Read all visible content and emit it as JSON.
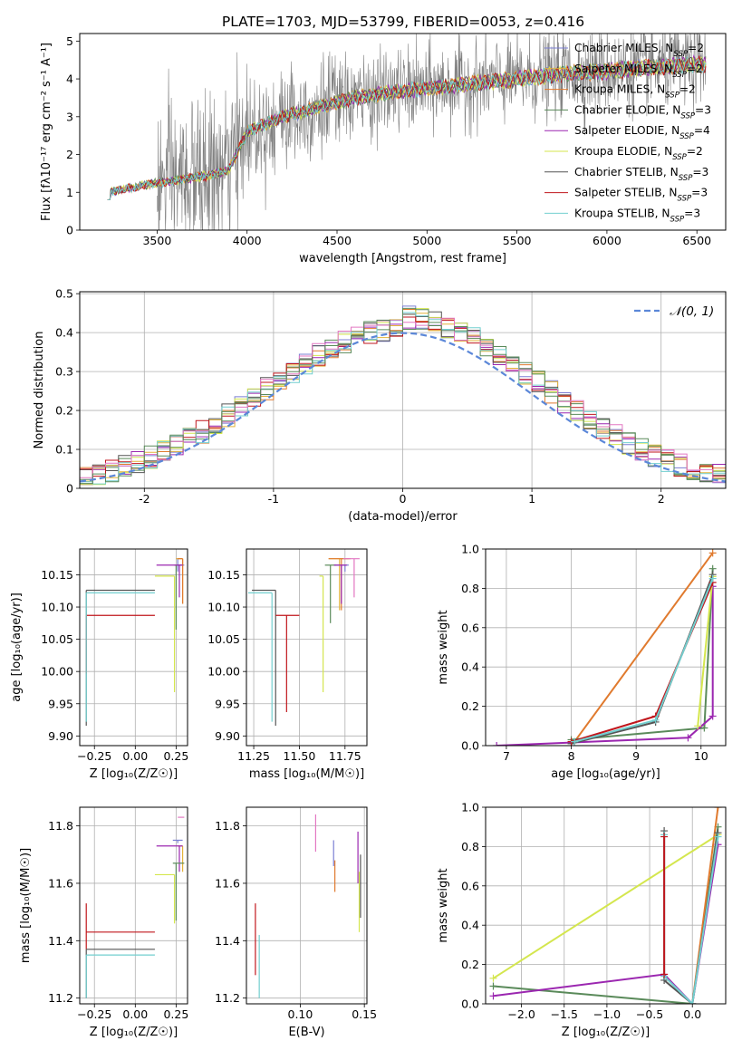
{
  "figure": {
    "title": "PLATE=1703, MJD=53799, FIBERID=0053, z=0.416"
  },
  "models": [
    {
      "imf": "Chabrier",
      "lib": "MILES",
      "nssp": "2",
      "color": "#7b7fd3"
    },
    {
      "imf": "Salpeter",
      "lib": "MILES",
      "nssp": "2",
      "color": "#e3b33a"
    },
    {
      "imf": "Kroupa",
      "lib": "MILES",
      "nssp": "2",
      "color": "#e07a2e"
    },
    {
      "imf": "Chabrier",
      "lib": "ELODIE",
      "nssp": "3",
      "color": "#5a8a5a"
    },
    {
      "imf": "Salpeter",
      "lib": "ELODIE",
      "nssp": "4",
      "color": "#9b27b0"
    },
    {
      "imf": "Kroupa",
      "lib": "ELODIE",
      "nssp": "2",
      "color": "#d4e64e"
    },
    {
      "imf": "Chabrier",
      "lib": "STELIB",
      "nssp": "3",
      "color": "#555555"
    },
    {
      "imf": "Salpeter",
      "lib": "STELIB",
      "nssp": "3",
      "color": "#c0161c"
    },
    {
      "imf": "Kroupa",
      "lib": "STELIB",
      "nssp": "3",
      "color": "#72cfcf"
    }
  ],
  "chart_data": [
    {
      "id": "spectrum",
      "type": "line",
      "xlabel": "wavelength [Angstrom, rest frame]",
      "ylabel": "Flux [fλ10⁻¹⁷ erg cm⁻² s⁻¹ A⁻¹]",
      "xlim": [
        3070,
        6660
      ],
      "ylim": [
        0,
        5.2
      ],
      "xticks": [
        3500,
        4000,
        4500,
        5000,
        5500,
        6000,
        6500
      ],
      "yticks": [
        0,
        1,
        2,
        3,
        4,
        5
      ],
      "legend": "top-right",
      "data_color": "#808080",
      "data_range": [
        3500,
        6550
      ],
      "model_range": [
        3225,
        6550
      ],
      "continuum": {
        "x": [
          3225,
          3500,
          3800,
          3900,
          4000,
          4200,
          4400,
          4600,
          4800,
          5000,
          5200,
          5400,
          5600,
          5800,
          6000,
          6200,
          6400,
          6550
        ],
        "y": [
          1.0,
          1.25,
          1.45,
          1.6,
          2.6,
          3.0,
          3.25,
          3.5,
          3.65,
          3.75,
          3.85,
          3.95,
          4.05,
          4.15,
          4.2,
          4.3,
          4.35,
          4.4
        ]
      }
    },
    {
      "id": "residuals",
      "type": "line",
      "xlabel": "(data-model)/error",
      "ylabel": "Normed distribution",
      "xlim": [
        -2.5,
        2.5
      ],
      "ylim": [
        0,
        0.505
      ],
      "xticks": [
        -2,
        -1,
        0,
        1,
        2
      ],
      "yticks": [
        0.0,
        0.1,
        0.2,
        0.3,
        0.4,
        0.5
      ],
      "legend": "top-right",
      "legend_label": "𝒩(0, 1)",
      "gaussian": {
        "mu": 0,
        "sigma": 1,
        "color": "#5b87d8"
      },
      "extra_colors": [
        "#e377c2",
        "#5a8a5a"
      ],
      "bin_width": 0.1
    },
    {
      "id": "age_vs_Z",
      "type": "scatter",
      "xlabel": "Z [log₁₀(Z/Z☉)]",
      "ylabel": "age [log₁₀(age/yr)]",
      "xlim": [
        -0.34,
        0.32
      ],
      "ylim": [
        9.885,
        10.19
      ],
      "xticks": [
        -0.25,
        0.0,
        0.25
      ],
      "xticklabels": [
        "−0.25",
        "0.00",
        "0.25"
      ],
      "yticks": [
        9.9,
        9.95,
        10.0,
        10.05,
        10.1,
        10.15
      ],
      "yticklabels": [
        "9.90",
        "9.95",
        "10.00",
        "10.05",
        "10.10",
        "10.15"
      ],
      "points": [
        {
          "c": "#7b7fd3",
          "x": 0.26,
          "xe": [
            0.0,
            0.04
          ],
          "y": 10.165,
          "ye": [
            0.01,
            0.01
          ]
        },
        {
          "c": "#e3b33a",
          "x": 0.29,
          "xe": [
            0.04,
            0.0
          ],
          "y": 10.175,
          "ye": [
            0.07,
            0.0
          ]
        },
        {
          "c": "#e07a2e",
          "x": 0.29,
          "xe": [
            0.03,
            0.0
          ],
          "y": 10.175,
          "ye": [
            0.07,
            0.0
          ]
        },
        {
          "c": "#5a8a5a",
          "x": 0.25,
          "xe": [
            0.01,
            0.03
          ],
          "y": 10.165,
          "ye": [
            0.1,
            0.0
          ]
        },
        {
          "c": "#9b27b0",
          "x": 0.27,
          "xe": [
            0.14,
            0.02
          ],
          "y": 10.165,
          "ye": [
            0.05,
            0.0
          ]
        },
        {
          "c": "#d4e64e",
          "x": 0.24,
          "xe": [
            0.12,
            0.0
          ],
          "y": 10.148,
          "ye": [
            0.18,
            0.0
          ]
        },
        {
          "c": "#555555",
          "x": -0.3,
          "xe": [
            0.0,
            0.42
          ],
          "y": 10.126,
          "ye": [
            0.21,
            0.0
          ]
        },
        {
          "c": "#c0161c",
          "x": -0.3,
          "xe": [
            0.0,
            0.42
          ],
          "y": 10.087,
          "ye": [
            0.09,
            0.0
          ]
        },
        {
          "c": "#72cfcf",
          "x": -0.3,
          "xe": [
            0.0,
            0.42
          ],
          "y": 10.122,
          "ye": [
            0.2,
            0.0
          ]
        }
      ]
    },
    {
      "id": "age_vs_mass",
      "type": "scatter",
      "xlabel": "mass [log₁₀(M/M☉)]",
      "ylabel": "",
      "xlim": [
        11.21,
        11.87
      ],
      "ylim": [
        9.885,
        10.19
      ],
      "xticks": [
        11.25,
        11.5,
        11.75
      ],
      "xticklabels": [
        "11.25",
        "11.50",
        "11.75"
      ],
      "yticks": [
        9.9,
        9.95,
        10.0,
        10.05,
        10.1,
        10.15
      ],
      "yticklabels": [
        "9.90",
        "9.95",
        "10.00",
        "10.05",
        "10.10",
        "10.15"
      ],
      "points": [
        {
          "c": "#7b7fd3",
          "x": 11.75,
          "xe": [
            0.06,
            0.02
          ],
          "y": 10.165,
          "ye": [
            0.01,
            0.0
          ]
        },
        {
          "c": "#e3b33a",
          "x": 11.72,
          "xe": [
            0.06,
            0.05
          ],
          "y": 10.175,
          "ye": [
            0.08,
            0.0
          ]
        },
        {
          "c": "#e07a2e",
          "x": 11.73,
          "xe": [
            0.07,
            0.05
          ],
          "y": 10.175,
          "ye": [
            0.08,
            0.0
          ]
        },
        {
          "c": "#5a8a5a",
          "x": 11.67,
          "xe": [
            0.03,
            0.03
          ],
          "y": 10.165,
          "ye": [
            0.09,
            0.0
          ]
        },
        {
          "c": "#9b27b0",
          "x": 11.73,
          "xe": [
            0.04,
            0.03
          ],
          "y": 10.165,
          "ye": [
            0.06,
            0.0
          ]
        },
        {
          "c": "#d4e64e",
          "x": 11.63,
          "xe": [
            0.02,
            0.0
          ],
          "y": 10.148,
          "ye": [
            0.18,
            0.0
          ]
        },
        {
          "c": "#555555",
          "x": 11.37,
          "xe": [
            0.13,
            0.0
          ],
          "y": 10.126,
          "ye": [
            0.21,
            0.0
          ]
        },
        {
          "c": "#c0161c",
          "x": 11.43,
          "xe": [
            0.06,
            0.07
          ],
          "y": 10.087,
          "ye": [
            0.15,
            0.0
          ]
        },
        {
          "c": "#72cfcf",
          "x": 11.35,
          "xe": [
            0.13,
            0.0
          ],
          "y": 10.122,
          "ye": [
            0.2,
            0.0
          ]
        },
        {
          "c": "#e377c2",
          "x": 11.8,
          "xe": [
            0.06,
            0.03
          ],
          "y": 10.175,
          "ye": [
            0.06,
            0.0
          ]
        }
      ]
    },
    {
      "id": "weight_vs_age",
      "type": "line",
      "xlabel": "age  [log₁₀(age/yr)]",
      "ylabel": "mass weight",
      "xlim": [
        6.68,
        10.38
      ],
      "ylim": [
        0,
        1.0
      ],
      "xticks": [
        7,
        8,
        9,
        10
      ],
      "yticks": [
        0.0,
        0.2,
        0.4,
        0.6,
        0.8,
        1.0
      ],
      "yticklabels": [
        "0.0",
        "0.2",
        "0.4",
        "0.6",
        "0.8",
        "1.0"
      ],
      "series": [
        {
          "c": "#e07a2e",
          "x": [
            8.05,
            10.18
          ],
          "y": [
            0.02,
            0.98
          ]
        },
        {
          "c": "#5a8a5a",
          "x": [
            8.0,
            10.05,
            10.18
          ],
          "y": [
            0.03,
            0.09,
            0.9
          ]
        },
        {
          "c": "#9b27b0",
          "x": [
            6.85,
            9.8,
            10.18,
            10.18
          ],
          "y": [
            0.0,
            0.04,
            0.15,
            0.81
          ]
        },
        {
          "c": "#d4e64e",
          "x": [
            9.95,
            10.18
          ],
          "y": [
            0.1,
            0.86
          ]
        },
        {
          "c": "#555555",
          "x": [
            8.0,
            9.3,
            10.18
          ],
          "y": [
            0.01,
            0.12,
            0.87
          ]
        },
        {
          "c": "#c0161c",
          "x": [
            8.0,
            9.3,
            10.18
          ],
          "y": [
            0.02,
            0.15,
            0.83
          ]
        },
        {
          "c": "#72cfcf",
          "x": [
            8.05,
            9.3,
            10.18
          ],
          "y": [
            0.02,
            0.13,
            0.85
          ]
        }
      ]
    },
    {
      "id": "mass_vs_Z",
      "type": "scatter",
      "xlabel": "Z [log₁₀(Z/Z☉)]",
      "ylabel": "mass [log₁₀(M/M☉)]",
      "xlim": [
        -0.34,
        0.32
      ],
      "ylim": [
        11.18,
        11.865
      ],
      "xticks": [
        -0.25,
        0.0,
        0.25
      ],
      "xticklabels": [
        "−0.25",
        "0.00",
        "0.25"
      ],
      "yticks": [
        11.2,
        11.4,
        11.6,
        11.8
      ],
      "yticklabels": [
        "11.2",
        "11.4",
        "11.6",
        "11.8"
      ],
      "points": [
        {
          "c": "#e377c2",
          "x": 0.3,
          "xe": [
            0.04,
            0.0
          ],
          "y": 11.83,
          "ye": [
            0.0,
            0.0
          ]
        },
        {
          "c": "#7b7fd3",
          "x": 0.26,
          "xe": [
            0.03,
            0.03
          ],
          "y": 11.75,
          "ye": [
            0.01,
            0.0
          ]
        },
        {
          "c": "#e3b33a",
          "x": 0.29,
          "xe": [
            0.03,
            0.0
          ],
          "y": 11.73,
          "ye": [
            0.09,
            0.0
          ]
        },
        {
          "c": "#9b27b0",
          "x": 0.27,
          "xe": [
            0.14,
            0.02
          ],
          "y": 11.73,
          "ye": [
            0.09,
            0.0
          ]
        },
        {
          "c": "#5a8a5a",
          "x": 0.25,
          "xe": [
            0.02,
            0.05
          ],
          "y": 11.67,
          "ye": [
            0.2,
            0.0
          ]
        },
        {
          "c": "#d4e64e",
          "x": 0.24,
          "xe": [
            0.12,
            0.0
          ],
          "y": 11.63,
          "ye": [
            0.17,
            0.0
          ]
        },
        {
          "c": "#c0161c",
          "x": -0.3,
          "xe": [
            0.0,
            0.42
          ],
          "y": 11.43,
          "ye": [
            0.06,
            0.1
          ]
        },
        {
          "c": "#555555",
          "x": -0.3,
          "xe": [
            0.0,
            0.42
          ],
          "y": 11.37,
          "ye": [
            0.17,
            0.0
          ]
        },
        {
          "c": "#72cfcf",
          "x": -0.3,
          "xe": [
            0.0,
            0.42
          ],
          "y": 11.35,
          "ye": [
            0.15,
            0.0
          ]
        }
      ]
    },
    {
      "id": "mass_vs_ebv",
      "type": "scatter",
      "xlabel": "E(B-V)",
      "ylabel": "",
      "xlim": [
        0.058,
        0.152
      ],
      "ylim": [
        11.18,
        11.865
      ],
      "xticks": [
        0.1,
        0.15
      ],
      "xticklabels": [
        "0.10",
        "0.15"
      ],
      "yticks": [
        11.2,
        11.4,
        11.6,
        11.8
      ],
      "yticklabels": [
        "11.2",
        "11.4",
        "11.6",
        "11.8"
      ],
      "points": [
        {
          "c": "#c0161c",
          "x": 0.065,
          "y": 11.43,
          "ye": [
            0.15,
            0.1
          ]
        },
        {
          "c": "#72cfcf",
          "x": 0.068,
          "y": 11.35,
          "ye": [
            0.15,
            0.07
          ]
        },
        {
          "c": "#e377c2",
          "x": 0.112,
          "y": 11.78,
          "ye": [
            0.07,
            0.06
          ]
        },
        {
          "c": "#7b7fd3",
          "x": 0.126,
          "y": 11.72,
          "ye": [
            0.06,
            0.03
          ]
        },
        {
          "c": "#e07a2e",
          "x": 0.127,
          "y": 11.66,
          "ye": [
            0.09,
            0.02
          ]
        },
        {
          "c": "#9b27b0",
          "x": 0.145,
          "y": 11.7,
          "ye": [
            0.1,
            0.08
          ]
        },
        {
          "c": "#d4e64e",
          "x": 0.146,
          "y": 11.6,
          "ye": [
            0.17,
            0.04
          ]
        },
        {
          "c": "#555555",
          "x": 0.147,
          "y": 11.68,
          "ye": [
            0.2,
            0.02
          ]
        }
      ]
    },
    {
      "id": "weight_vs_Z",
      "type": "line",
      "xlabel": "Z [log₁₀(Z/Z☉)]",
      "ylabel": "mass weight",
      "xlim": [
        -2.42,
        0.39
      ],
      "ylim": [
        0,
        1.0
      ],
      "xticks": [
        -2.0,
        -1.5,
        -1.0,
        -0.5,
        0.0
      ],
      "xticklabels": [
        "−2.0",
        "−1.5",
        "−1.0",
        "−0.5",
        "0.0"
      ],
      "yticks": [
        0.0,
        0.2,
        0.4,
        0.6,
        0.8,
        1.0
      ],
      "yticklabels": [
        "0.0",
        "0.2",
        "0.4",
        "0.6",
        "0.8",
        "1.0"
      ],
      "series": [
        {
          "c": "#d4e64e",
          "x": [
            -2.33,
            0.3
          ],
          "y": [
            0.13,
            0.86
          ]
        },
        {
          "c": "#5a8a5a",
          "x": [
            -2.33,
            0.0,
            0.3
          ],
          "y": [
            0.09,
            0.0,
            0.9
          ]
        },
        {
          "c": "#9b27b0",
          "x": [
            -2.33,
            -0.33,
            0.0,
            0.3
          ],
          "y": [
            0.04,
            0.15,
            0.0,
            0.81
          ]
        },
        {
          "c": "#e07a2e",
          "x": [
            0.0,
            0.3
          ],
          "y": [
            0.0,
            1.0
          ]
        },
        {
          "c": "#555555",
          "x": [
            -0.33,
            -0.33,
            0.0,
            0.3
          ],
          "y": [
            0.88,
            0.12,
            0.0,
            0.87
          ]
        },
        {
          "c": "#72cfcf",
          "x": [
            -0.33,
            -0.33,
            0.0,
            0.3
          ],
          "y": [
            0.86,
            0.14,
            0.0,
            0.85
          ]
        },
        {
          "c": "#c0161c",
          "x": [
            -0.33,
            -0.33
          ],
          "y": [
            0.85,
            0.15
          ]
        }
      ]
    }
  ]
}
